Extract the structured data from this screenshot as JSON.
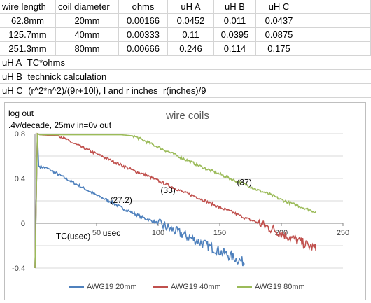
{
  "table": {
    "headers": [
      "wire length",
      "coil diameter",
      "ohms",
      "uH A",
      "uH B",
      "uH C"
    ],
    "rows": [
      [
        "62.8mm",
        "20mm",
        "0.00166",
        "0.0452",
        "0.011",
        "0.0437"
      ],
      [
        "125.7mm",
        "40mm",
        "0.00333",
        "0.11",
        "0.0395",
        "0.0875"
      ],
      [
        "251.3mm",
        "80mm",
        "0.00666",
        "0.246",
        "0.114",
        "0.175"
      ]
    ]
  },
  "notes": [
    "uH A=TC*ohms",
    "uH B=technick calculation",
    "uH C=(r^2*n^2)/(9r+10l), l and r inches=r(inches)/9"
  ],
  "chart_data": {
    "type": "line",
    "title": "wire coils",
    "annotation_lines": [
      "log out",
      ".4v/decade, 25mv in=0v out"
    ],
    "xlabel": "usec",
    "xlabel2": "TC(usec)",
    "xlim": [
      0,
      250
    ],
    "ylim": [
      -0.4,
      0.8
    ],
    "x_ticks": [
      "50",
      "100",
      "150",
      "200",
      "250"
    ],
    "y_ticks": [
      "0.8",
      "0.4",
      "0",
      "-0.4"
    ],
    "grid": true,
    "legend_position": "bottom",
    "series": [
      {
        "name": "AWG19 20mm",
        "color": "#4f81bd",
        "label": "(27.2)",
        "points": [
          [
            0,
            -0.4
          ],
          [
            2,
            0.8
          ],
          [
            3,
            0.51
          ],
          [
            10,
            0.49
          ],
          [
            20,
            0.43
          ],
          [
            30,
            0.37
          ],
          [
            40,
            0.31
          ],
          [
            50,
            0.25
          ],
          [
            60,
            0.2
          ],
          [
            70,
            0.14
          ],
          [
            80,
            0.09
          ],
          [
            90,
            0.04
          ],
          [
            100,
            0.0
          ],
          [
            110,
            -0.05
          ],
          [
            120,
            -0.1
          ],
          [
            130,
            -0.15
          ],
          [
            140,
            -0.2
          ],
          [
            150,
            -0.25
          ],
          [
            160,
            -0.3
          ],
          [
            170,
            -0.35
          ]
        ]
      },
      {
        "name": "AWG19 40mm",
        "color": "#c0504d",
        "label": "(33)",
        "points": [
          [
            0,
            -0.4
          ],
          [
            2,
            0.8
          ],
          [
            4,
            0.79
          ],
          [
            20,
            0.78
          ],
          [
            30,
            0.72
          ],
          [
            40,
            0.67
          ],
          [
            50,
            0.62
          ],
          [
            60,
            0.57
          ],
          [
            70,
            0.52
          ],
          [
            80,
            0.47
          ],
          [
            90,
            0.43
          ],
          [
            100,
            0.38
          ],
          [
            110,
            0.33
          ],
          [
            120,
            0.28
          ],
          [
            130,
            0.24
          ],
          [
            140,
            0.19
          ],
          [
            150,
            0.14
          ],
          [
            160,
            0.1
          ],
          [
            170,
            0.05
          ],
          [
            180,
            0.01
          ],
          [
            190,
            -0.04
          ],
          [
            200,
            -0.09
          ],
          [
            210,
            -0.14
          ],
          [
            220,
            -0.19
          ],
          [
            228,
            -0.23
          ]
        ]
      },
      {
        "name": "AWG19 80mm",
        "color": "#9bbb59",
        "label": "(37)",
        "points": [
          [
            0,
            -0.4
          ],
          [
            2,
            0.8
          ],
          [
            4,
            0.79
          ],
          [
            40,
            0.79
          ],
          [
            70,
            0.79
          ],
          [
            80,
            0.78
          ],
          [
            90,
            0.73
          ],
          [
            100,
            0.68
          ],
          [
            110,
            0.63
          ],
          [
            120,
            0.58
          ],
          [
            130,
            0.53
          ],
          [
            140,
            0.48
          ],
          [
            150,
            0.44
          ],
          [
            160,
            0.39
          ],
          [
            170,
            0.35
          ],
          [
            180,
            0.3
          ],
          [
            190,
            0.26
          ],
          [
            200,
            0.21
          ],
          [
            210,
            0.17
          ],
          [
            220,
            0.13
          ],
          [
            228,
            0.1
          ]
        ]
      }
    ]
  }
}
